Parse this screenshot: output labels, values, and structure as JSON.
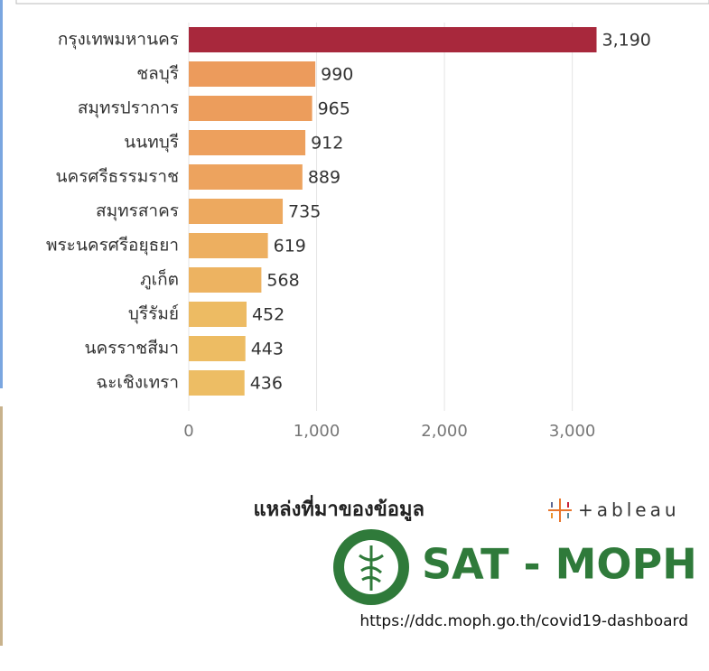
{
  "chart_data": {
    "type": "bar",
    "orientation": "horizontal",
    "categories": [
      "กรุงเทพมหานคร",
      "ชลบุรี",
      "สมุทรปราการ",
      "นนทบุรี",
      "นครศรีธรรมราช",
      "สมุทรสาคร",
      "พระนครศรีอยุธยา",
      "ภูเก็ต",
      "บุรีรัมย์",
      "นครราชสีมา",
      "ฉะเชิงเทรา"
    ],
    "values": [
      3190,
      990,
      965,
      912,
      889,
      735,
      619,
      568,
      452,
      443,
      436
    ],
    "value_labels": [
      "3,190",
      "990",
      "965",
      "912",
      "889",
      "735",
      "619",
      "568",
      "452",
      "443",
      "436"
    ],
    "colors": [
      "#a8283c",
      "#ec9b5c",
      "#ec9d5c",
      "#eda05d",
      "#eda35e",
      "#eda95f",
      "#edaf60",
      "#edb361",
      "#edbb63",
      "#edbc63",
      "#edbd64"
    ],
    "xlim": [
      0,
      3900
    ],
    "xticks": [
      0,
      {
        "value": 1000,
        "label": "1,000"
      },
      {
        "value": 2000,
        "label": "2,000"
      },
      {
        "value": 3000,
        "label": "3,000"
      }
    ],
    "grid": true
  },
  "source": {
    "label": "แหล่งที่มาของข้อมูล",
    "logo": "+ableau",
    "org": "SAT - MOPH",
    "url": "https://ddc.moph.go.th/covid19-dashboard"
  }
}
